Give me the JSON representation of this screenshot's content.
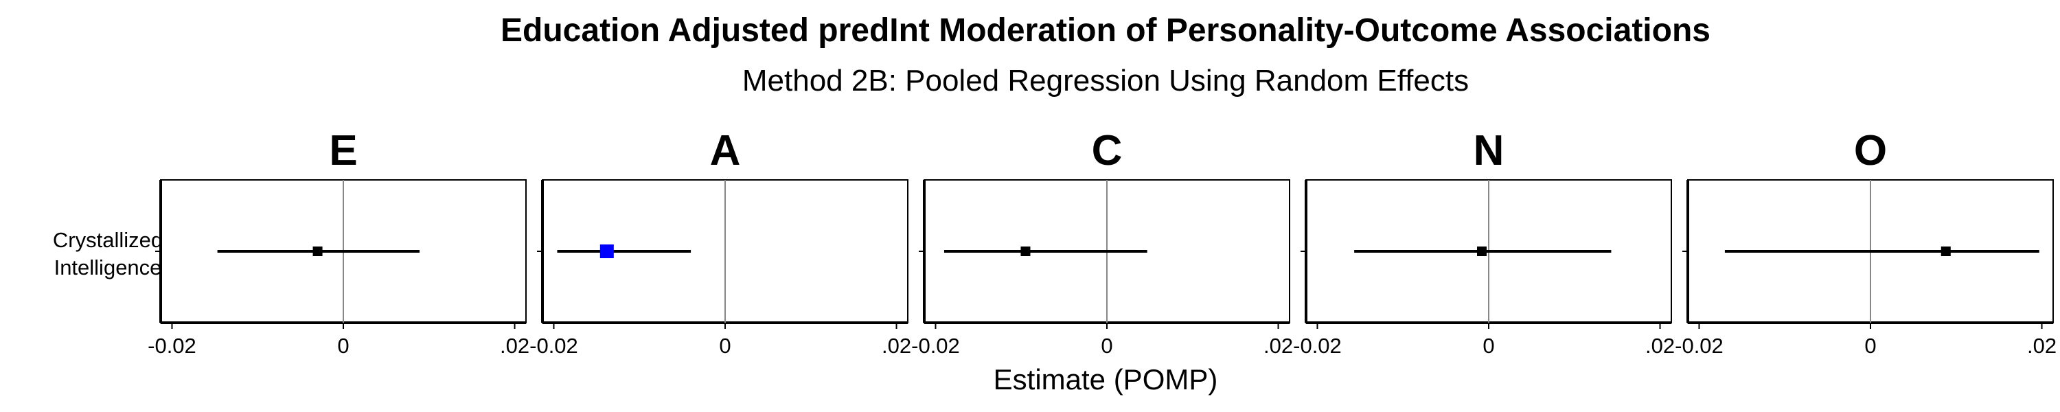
{
  "chart_data": {
    "type": "forest",
    "title": "Education Adjusted predInt Moderation of Personality-Outcome Associations",
    "subtitle": "Method 2B: Pooled Regression Using Random Effects",
    "xlabel": "Estimate (POMP)",
    "row_label": [
      "Crystallized",
      "Intelligence"
    ],
    "xlim": [
      -0.021,
      0.021
    ],
    "xticks": [
      -0.02,
      0,
      0.02
    ],
    "xtick_labels": [
      "-0.02",
      "0",
      ".02"
    ],
    "reference_line": 0,
    "panels": [
      {
        "trait": "E",
        "estimate": -0.003,
        "ci_low": -0.0147,
        "ci_high": 0.0089,
        "highlight": false
      },
      {
        "trait": "A",
        "estimate": -0.0138,
        "ci_low": -0.0196,
        "ci_high": -0.004,
        "highlight": true
      },
      {
        "trait": "C",
        "estimate": -0.0095,
        "ci_low": -0.019,
        "ci_high": 0.0047,
        "highlight": false
      },
      {
        "trait": "N",
        "estimate": -0.0008,
        "ci_low": -0.0157,
        "ci_high": 0.0143,
        "highlight": false
      },
      {
        "trait": "O",
        "estimate": 0.0088,
        "ci_low": -0.017,
        "ci_high": 0.0197,
        "highlight": false
      }
    ],
    "colors": {
      "point": "#000000",
      "highlight": "#0000ff",
      "ref_line": "#888888",
      "axis": "#000000"
    }
  }
}
